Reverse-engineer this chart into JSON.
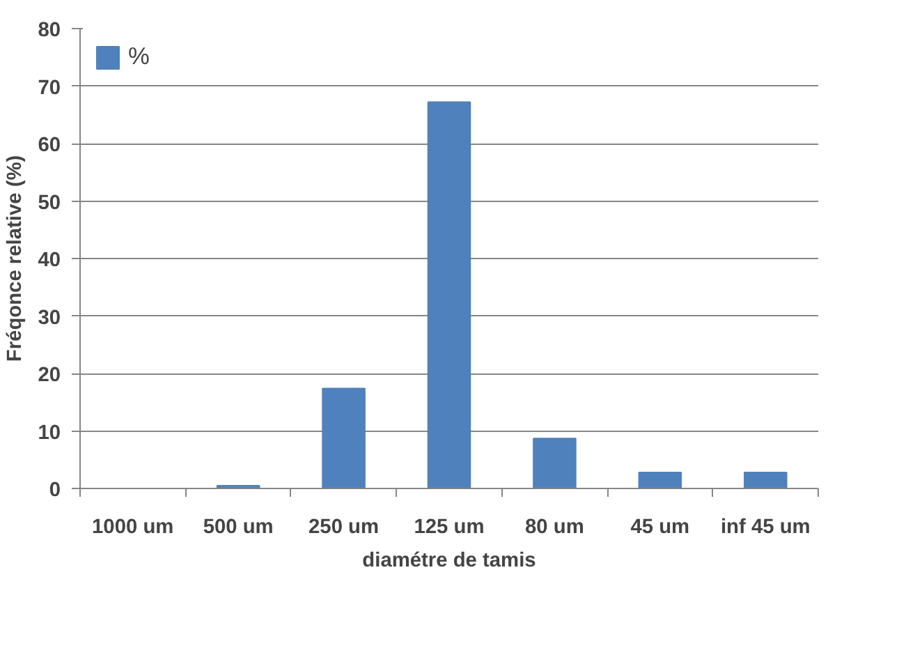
{
  "chart_data": {
    "type": "bar",
    "xlabel": "diamétre de tamis",
    "ylabel": "Fréqonce relative (%)",
    "categories": [
      "1000 um",
      "500 um",
      "250 um",
      "125 um",
      "80 um",
      "45 um",
      "inf 45 um"
    ],
    "series": [
      {
        "name": "%",
        "color": "#4f81bd",
        "values": [
          0,
          0.5,
          17.4,
          67.2,
          8.7,
          2.8,
          2.8
        ]
      }
    ],
    "ylim": [
      0,
      80
    ],
    "yticks": [
      0,
      10,
      20,
      30,
      40,
      50,
      60,
      70,
      80
    ],
    "grid": "y",
    "legend": "top left"
  }
}
